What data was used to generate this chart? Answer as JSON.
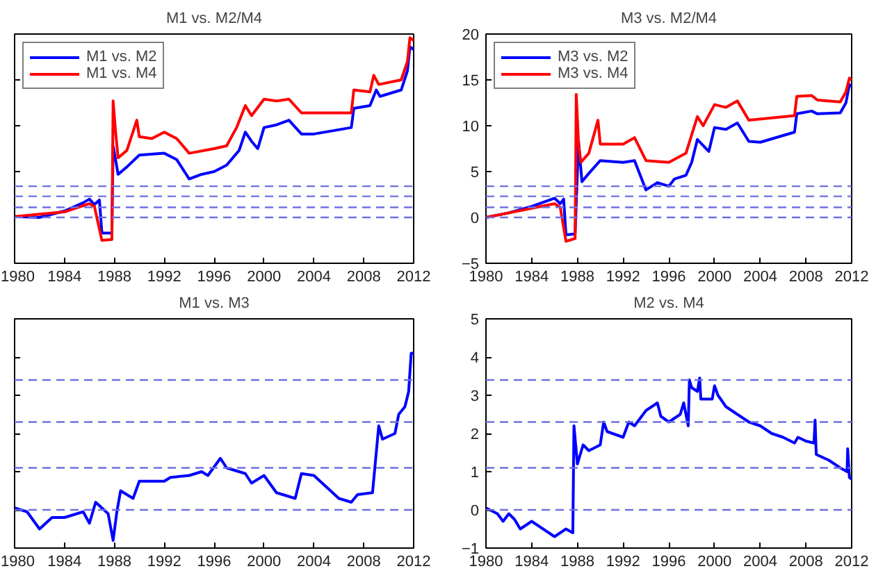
{
  "chart_data": [
    {
      "type": "line",
      "title": "M1 vs. M2/M4",
      "xlim": [
        1980,
        2012
      ],
      "xticks": [
        1980,
        1984,
        1988,
        1992,
        1996,
        2000,
        2004,
        2008,
        2012
      ],
      "ylim": [
        -5,
        20
      ],
      "yticks": [
        -5,
        0,
        5,
        10,
        15,
        20
      ],
      "tick_labels": "x",
      "legend": "top left",
      "grid": false,
      "ref_lines": [
        {
          "axis": "y",
          "value": 0,
          "color": "#6f6fe0",
          "line_style": "dashed"
        },
        {
          "axis": "y",
          "value": 1.1,
          "color": "#6f6fe0",
          "line_style": "dashed"
        },
        {
          "axis": "y",
          "value": 2.3,
          "color": "#6f6fe0",
          "line_style": "dashed"
        },
        {
          "axis": "y",
          "value": 3.4,
          "color": "#6f6fe0",
          "line_style": "dashed"
        }
      ],
      "series": [
        {
          "name": "M1 vs. M2",
          "color": "#0000ff",
          "x": [
            1980,
            1982,
            1984,
            1985.5,
            1986,
            1986.4,
            1986.8,
            1987,
            1987.8,
            1987.9,
            1988.3,
            1989,
            1990,
            1992,
            1993,
            1994,
            1995,
            1996,
            1997,
            1998,
            1998.5,
            1999,
            1999.5,
            2000,
            2001,
            2002,
            2003,
            2004,
            2007,
            2007.2,
            2008.5,
            2009,
            2009.3,
            2011,
            2011.5,
            2011.7,
            2012
          ],
          "values": [
            0.1,
            0,
            0.7,
            1.6,
            2.0,
            1.4,
            1.9,
            -1.7,
            -1.7,
            7.8,
            4.7,
            5.5,
            6.8,
            7.0,
            6.3,
            4.2,
            4.7,
            5.0,
            5.7,
            7.3,
            9.3,
            8.3,
            7.5,
            9.8,
            10.1,
            10.6,
            9.1,
            9.1,
            9.8,
            11.9,
            12.2,
            13.9,
            13.2,
            13.9,
            16,
            18.6,
            18.3
          ]
        },
        {
          "name": "M1 vs. M4",
          "color": "#ff0000",
          "x": [
            1980,
            1984,
            1986,
            1986.4,
            1987,
            1987.8,
            1987.9,
            1988.1,
            1988.3,
            1989,
            1989.8,
            1990,
            1991,
            1992,
            1993,
            1994,
            1996,
            1997,
            1997.8,
            1998.5,
            1999,
            2000,
            2001,
            2002,
            2003,
            2007,
            2007.2,
            2008.5,
            2008.8,
            2009.2,
            2011,
            2011.5,
            2011.7,
            2012
          ],
          "values": [
            0.1,
            0.6,
            1.5,
            1.2,
            -2.5,
            -2.4,
            12.7,
            9.3,
            6.5,
            7.3,
            10.6,
            8.8,
            8.6,
            9.3,
            8.6,
            7.0,
            7.5,
            7.8,
            9.8,
            12.2,
            11.1,
            12.9,
            12.7,
            12.9,
            11.4,
            11.4,
            13.9,
            13.7,
            15.5,
            14.5,
            15,
            17,
            19.6,
            19.3
          ]
        }
      ]
    },
    {
      "type": "line",
      "title": "M3 vs. M2/M4",
      "xlim": [
        1980,
        2012
      ],
      "xticks": [
        1980,
        1984,
        1988,
        1992,
        1996,
        2000,
        2004,
        2008,
        2012
      ],
      "ylim": [
        -5,
        20
      ],
      "yticks": [
        -5,
        0,
        5,
        10,
        15,
        20
      ],
      "legend": "top left",
      "grid": false,
      "ref_lines": [
        {
          "axis": "y",
          "value": 0,
          "color": "#6f6fe0",
          "line_style": "dashed"
        },
        {
          "axis": "y",
          "value": 1.1,
          "color": "#6f6fe0",
          "line_style": "dashed"
        },
        {
          "axis": "y",
          "value": 2.3,
          "color": "#6f6fe0",
          "line_style": "dashed"
        },
        {
          "axis": "y",
          "value": 3.4,
          "color": "#6f6fe0",
          "line_style": "dashed"
        }
      ],
      "series": [
        {
          "name": "M3 vs. M2",
          "color": "#0000ff",
          "x": [
            1980,
            1982,
            1984,
            1986,
            1986.5,
            1986.8,
            1987,
            1987.8,
            1988.1,
            1988.4,
            1989,
            1990,
            1992,
            1993,
            1994,
            1995,
            1996,
            1996.5,
            1997.5,
            1998,
            1998.5,
            1999.5,
            2000,
            2001,
            2002,
            2003,
            2004,
            2007,
            2007.2,
            2008.5,
            2009,
            2011,
            2011.5,
            2011.8,
            2012
          ],
          "values": [
            0,
            0.5,
            1.2,
            2.1,
            1.5,
            2.0,
            -1.9,
            -1.8,
            8.3,
            3.9,
            4.8,
            6.2,
            6.0,
            6.2,
            3.0,
            3.8,
            3.4,
            4.2,
            4.6,
            6,
            8.5,
            7.2,
            9.8,
            9.6,
            10.3,
            8.3,
            8.2,
            9.3,
            11.3,
            11.6,
            11.3,
            11.4,
            12.5,
            14.5,
            14.3
          ]
        },
        {
          "name": "M3 vs. M4",
          "color": "#ff0000",
          "x": [
            1980,
            1984,
            1986,
            1986.5,
            1987,
            1987.8,
            1987.9,
            1988.1,
            1988.3,
            1989,
            1989.8,
            1990,
            1992,
            1993,
            1994,
            1996,
            1997.5,
            1998,
            1998.5,
            1999,
            2000,
            2001,
            2002,
            2003,
            2007,
            2007.2,
            2008.5,
            2009,
            2011,
            2011.5,
            2011.8,
            2012
          ],
          "values": [
            0,
            1.0,
            1.5,
            1.1,
            -2.6,
            -2.3,
            13.4,
            8.0,
            6.0,
            7.0,
            10.6,
            8.0,
            8.0,
            8.7,
            6.2,
            6.0,
            7.0,
            9.0,
            11.0,
            10.0,
            12.3,
            12.0,
            12.7,
            10.6,
            11.1,
            13.2,
            13.3,
            12.8,
            12.6,
            13.7,
            15.2,
            15.0
          ]
        }
      ]
    },
    {
      "type": "line",
      "title": "M1 vs. M3",
      "xlim": [
        1980,
        2012
      ],
      "xticks": [
        1980,
        1984,
        1988,
        1992,
        1996,
        2000,
        2004,
        2008,
        2012
      ],
      "ylim": [
        -1,
        5
      ],
      "yticks": [
        -1,
        0,
        1,
        2,
        3,
        4,
        5
      ],
      "tick_labels": "x",
      "grid": false,
      "ref_lines": [
        {
          "axis": "y",
          "value": 0,
          "color": "#6f6fe0",
          "line_style": "dashed"
        },
        {
          "axis": "y",
          "value": 1.1,
          "color": "#6f6fe0",
          "line_style": "dashed"
        },
        {
          "axis": "y",
          "value": 2.3,
          "color": "#6f6fe0",
          "line_style": "dashed"
        },
        {
          "axis": "y",
          "value": 3.4,
          "color": "#6f6fe0",
          "line_style": "dashed"
        }
      ],
      "series": [
        {
          "color": "#0000ff",
          "x": [
            1980,
            1981,
            1982,
            1983,
            1984,
            1985.5,
            1986,
            1986.5,
            1987,
            1987.5,
            1987.9,
            1988.2,
            1988.5,
            1989.5,
            1990,
            1992,
            1992.5,
            1994,
            1995,
            1995.5,
            1996.5,
            1997,
            1998.5,
            1999,
            2000,
            2001,
            2002.5,
            2003,
            2004,
            2006,
            2007,
            2007.5,
            2008.7,
            2009.2,
            2009.5,
            2010.5,
            2010.8,
            2011.3,
            2011.6,
            2011.8,
            2012
          ],
          "values": [
            0.05,
            -0.05,
            -0.5,
            -0.2,
            -0.2,
            -0.05,
            -0.35,
            0.2,
            0.05,
            -0.1,
            -0.8,
            -0.05,
            0.5,
            0.3,
            0.75,
            0.75,
            0.85,
            0.9,
            1.0,
            0.9,
            1.35,
            1.1,
            0.95,
            0.7,
            0.9,
            0.45,
            0.3,
            0.95,
            0.9,
            0.3,
            0.2,
            0.4,
            0.45,
            2.2,
            1.85,
            2.0,
            2.5,
            2.7,
            3.1,
            4.1,
            4.1
          ]
        }
      ]
    },
    {
      "type": "line",
      "title": "M2 vs. M4",
      "xlim": [
        1980,
        2012
      ],
      "xticks": [
        1980,
        1984,
        1988,
        1992,
        1996,
        2000,
        2004,
        2008,
        2012
      ],
      "ylim": [
        -1,
        5
      ],
      "yticks": [
        -1,
        0,
        1,
        2,
        3,
        4,
        5
      ],
      "grid": false,
      "ref_lines": [
        {
          "axis": "y",
          "value": 0,
          "color": "#6f6fe0",
          "line_style": "dashed"
        },
        {
          "axis": "y",
          "value": 1.1,
          "color": "#6f6fe0",
          "line_style": "dashed"
        },
        {
          "axis": "y",
          "value": 2.3,
          "color": "#6f6fe0",
          "line_style": "dashed"
        },
        {
          "axis": "y",
          "value": 3.4,
          "color": "#6f6fe0",
          "line_style": "dashed"
        }
      ],
      "series": [
        {
          "color": "#0000ff",
          "x": [
            1980,
            1981,
            1981.5,
            1982,
            1982.5,
            1983,
            1984,
            1985,
            1986,
            1987,
            1987.6,
            1987.7,
            1988,
            1988.5,
            1989,
            1990,
            1990.3,
            1990.6,
            1992,
            1992.5,
            1993,
            1994,
            1995,
            1995.3,
            1996,
            1997,
            1997.3,
            1997.7,
            1997.8,
            1998,
            1998.5,
            1998.7,
            1998.8,
            1999.8,
            2000,
            2000.3,
            2001,
            2002,
            2003,
            2004,
            2005,
            2006,
            2007,
            2007.3,
            2008,
            2008.7,
            2008.8,
            2008.9,
            2010,
            2010.5,
            2011,
            2011.6,
            2011.65,
            2011.8,
            2012
          ],
          "values": [
            0.05,
            -0.1,
            -0.3,
            -0.1,
            -0.25,
            -0.5,
            -0.3,
            -0.5,
            -0.7,
            -0.5,
            -0.6,
            2.2,
            1.2,
            1.7,
            1.55,
            1.7,
            2.3,
            2.05,
            1.9,
            2.3,
            2.2,
            2.6,
            2.8,
            2.45,
            2.3,
            2.5,
            2.8,
            2.2,
            3.4,
            3.2,
            3.1,
            3.45,
            2.9,
            2.9,
            3.25,
            3.0,
            2.7,
            2.5,
            2.3,
            2.2,
            2.0,
            1.9,
            1.75,
            1.9,
            1.8,
            1.75,
            2.35,
            1.45,
            1.3,
            1.2,
            1.1,
            1.0,
            1.6,
            0.85,
            0.8
          ]
        }
      ]
    }
  ]
}
